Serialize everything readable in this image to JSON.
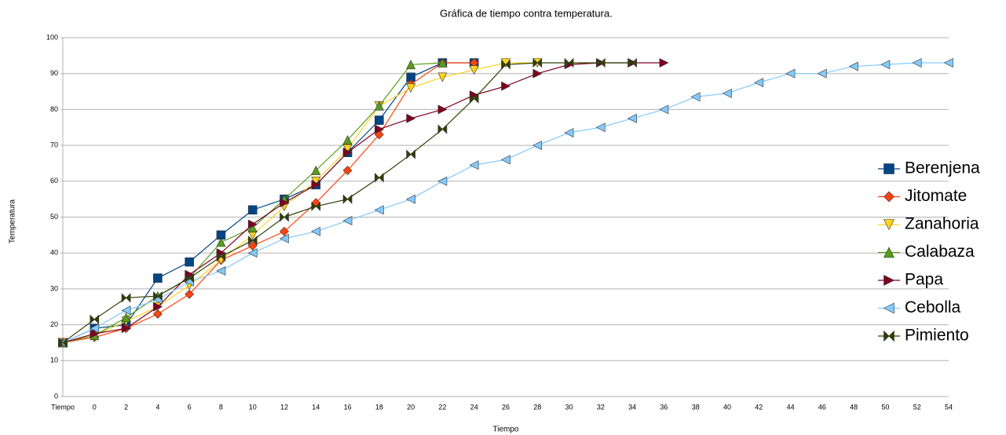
{
  "chart_data": {
    "type": "line",
    "title": "Gráfica de tiempo contra temperatura.",
    "x_label": "Tiempo",
    "y_label": "Temperatura",
    "categories": [
      "Tiempo",
      "0",
      "2",
      "4",
      "6",
      "8",
      "10",
      "12",
      "14",
      "16",
      "18",
      "20",
      "22",
      "24",
      "26",
      "28",
      "30",
      "32",
      "34",
      "36",
      "38",
      "40",
      "42",
      "44",
      "46",
      "48",
      "50",
      "52",
      "54"
    ],
    "ylim": [
      0,
      100
    ],
    "yticks": [
      0,
      10,
      20,
      30,
      40,
      50,
      60,
      70,
      80,
      90,
      100
    ],
    "grid": true,
    "legend": "right",
    "series": [
      {
        "name": "Berenjena",
        "color": "#004586",
        "marker": "square",
        "values": [
          15,
          19,
          20,
          33,
          37.5,
          45,
          52,
          55,
          59,
          68,
          77,
          89,
          93,
          93,
          null,
          null,
          null,
          null,
          null,
          null,
          null,
          null,
          null,
          null,
          null,
          null,
          null,
          null,
          null
        ]
      },
      {
        "name": "Jitomate",
        "color": "#ff420e",
        "marker": "diamond",
        "values": [
          15,
          16.5,
          19,
          23,
          28.5,
          38,
          42,
          46,
          54,
          63,
          73,
          87,
          93,
          93,
          null,
          null,
          null,
          null,
          null,
          null,
          null,
          null,
          null,
          null,
          null,
          null,
          null,
          null,
          null
        ]
      },
      {
        "name": "Zanahoria",
        "color": "#ffd320",
        "marker": "triangle-down",
        "values": [
          15,
          17,
          21,
          25,
          31,
          38,
          45,
          53,
          60,
          69,
          81,
          86,
          89,
          91,
          93,
          93,
          null,
          null,
          null,
          null,
          null,
          null,
          null,
          null,
          null,
          null,
          null,
          null,
          null
        ]
      },
      {
        "name": "Calabaza",
        "color": "#579d1c",
        "marker": "triangle-up",
        "values": [
          15,
          17,
          22,
          28,
          33,
          43,
          47,
          55,
          63,
          71.5,
          81,
          92.5,
          93,
          null,
          null,
          null,
          null,
          null,
          null,
          null,
          null,
          null,
          null,
          null,
          null,
          null,
          null,
          null,
          null
        ]
      },
      {
        "name": "Papa",
        "color": "#7e0021",
        "marker": "triangle-right",
        "values": [
          15,
          17.5,
          19,
          25,
          34,
          40,
          48,
          54,
          59,
          68,
          74.5,
          77.5,
          80,
          84,
          86.5,
          90,
          92.5,
          93,
          93,
          93,
          null,
          null,
          null,
          null,
          null,
          null,
          null,
          null,
          null
        ]
      },
      {
        "name": "Cebolla",
        "color": "#83caff",
        "marker": "triangle-left",
        "values": [
          15,
          19,
          24,
          27,
          32,
          35,
          40,
          44,
          46,
          49,
          52,
          55,
          60,
          64.5,
          66,
          70,
          73.5,
          75,
          77.5,
          80,
          83.5,
          84.5,
          87.5,
          90,
          90,
          92,
          92.5,
          93,
          93
        ]
      },
      {
        "name": "Pimiento",
        "color": "#314004",
        "marker": "bowtie",
        "values": [
          15,
          21.5,
          27.5,
          28,
          33,
          39,
          43.5,
          50,
          53,
          55,
          61,
          67.5,
          74.5,
          83,
          92.5,
          93,
          93,
          93,
          93,
          null,
          null,
          null,
          null,
          null,
          null,
          null,
          null,
          null,
          null
        ]
      }
    ]
  }
}
